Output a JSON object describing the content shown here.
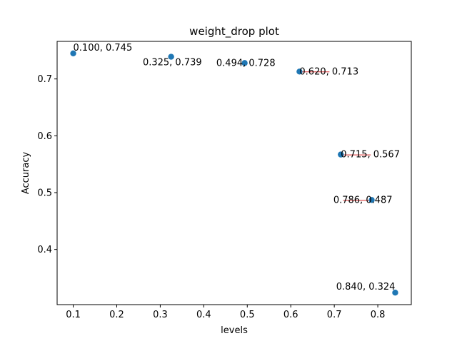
{
  "chart_data": {
    "type": "scatter",
    "title": "weight_drop plot",
    "xlabel": "levels",
    "ylabel": "Accuracy",
    "xlim": [
      0.063,
      0.877
    ],
    "ylim": [
      0.3029,
      0.7661
    ],
    "xticks": [
      "0.1",
      "0.2",
      "0.3",
      "0.4",
      "0.5",
      "0.6",
      "0.7",
      "0.8"
    ],
    "yticks": [
      "0.4",
      "0.5",
      "0.6",
      "0.7"
    ],
    "grid": false,
    "point_color": "#1f77b4",
    "line_color": "#d62728",
    "points": [
      {
        "x": 0.1,
        "y": 0.745,
        "label": "0.100, 0.745"
      },
      {
        "x": 0.325,
        "y": 0.739,
        "label": "0.325, 0.739"
      },
      {
        "x": 0.494,
        "y": 0.728,
        "label": "0.494, 0.728"
      },
      {
        "x": 0.62,
        "y": 0.713,
        "label": "0.620, 0.713"
      },
      {
        "x": 0.715,
        "y": 0.567,
        "label": "0.715, 0.567"
      },
      {
        "x": 0.786,
        "y": 0.487,
        "label": "0.786, 0.487"
      },
      {
        "x": 0.84,
        "y": 0.324,
        "label": "0.840, 0.324"
      }
    ]
  }
}
